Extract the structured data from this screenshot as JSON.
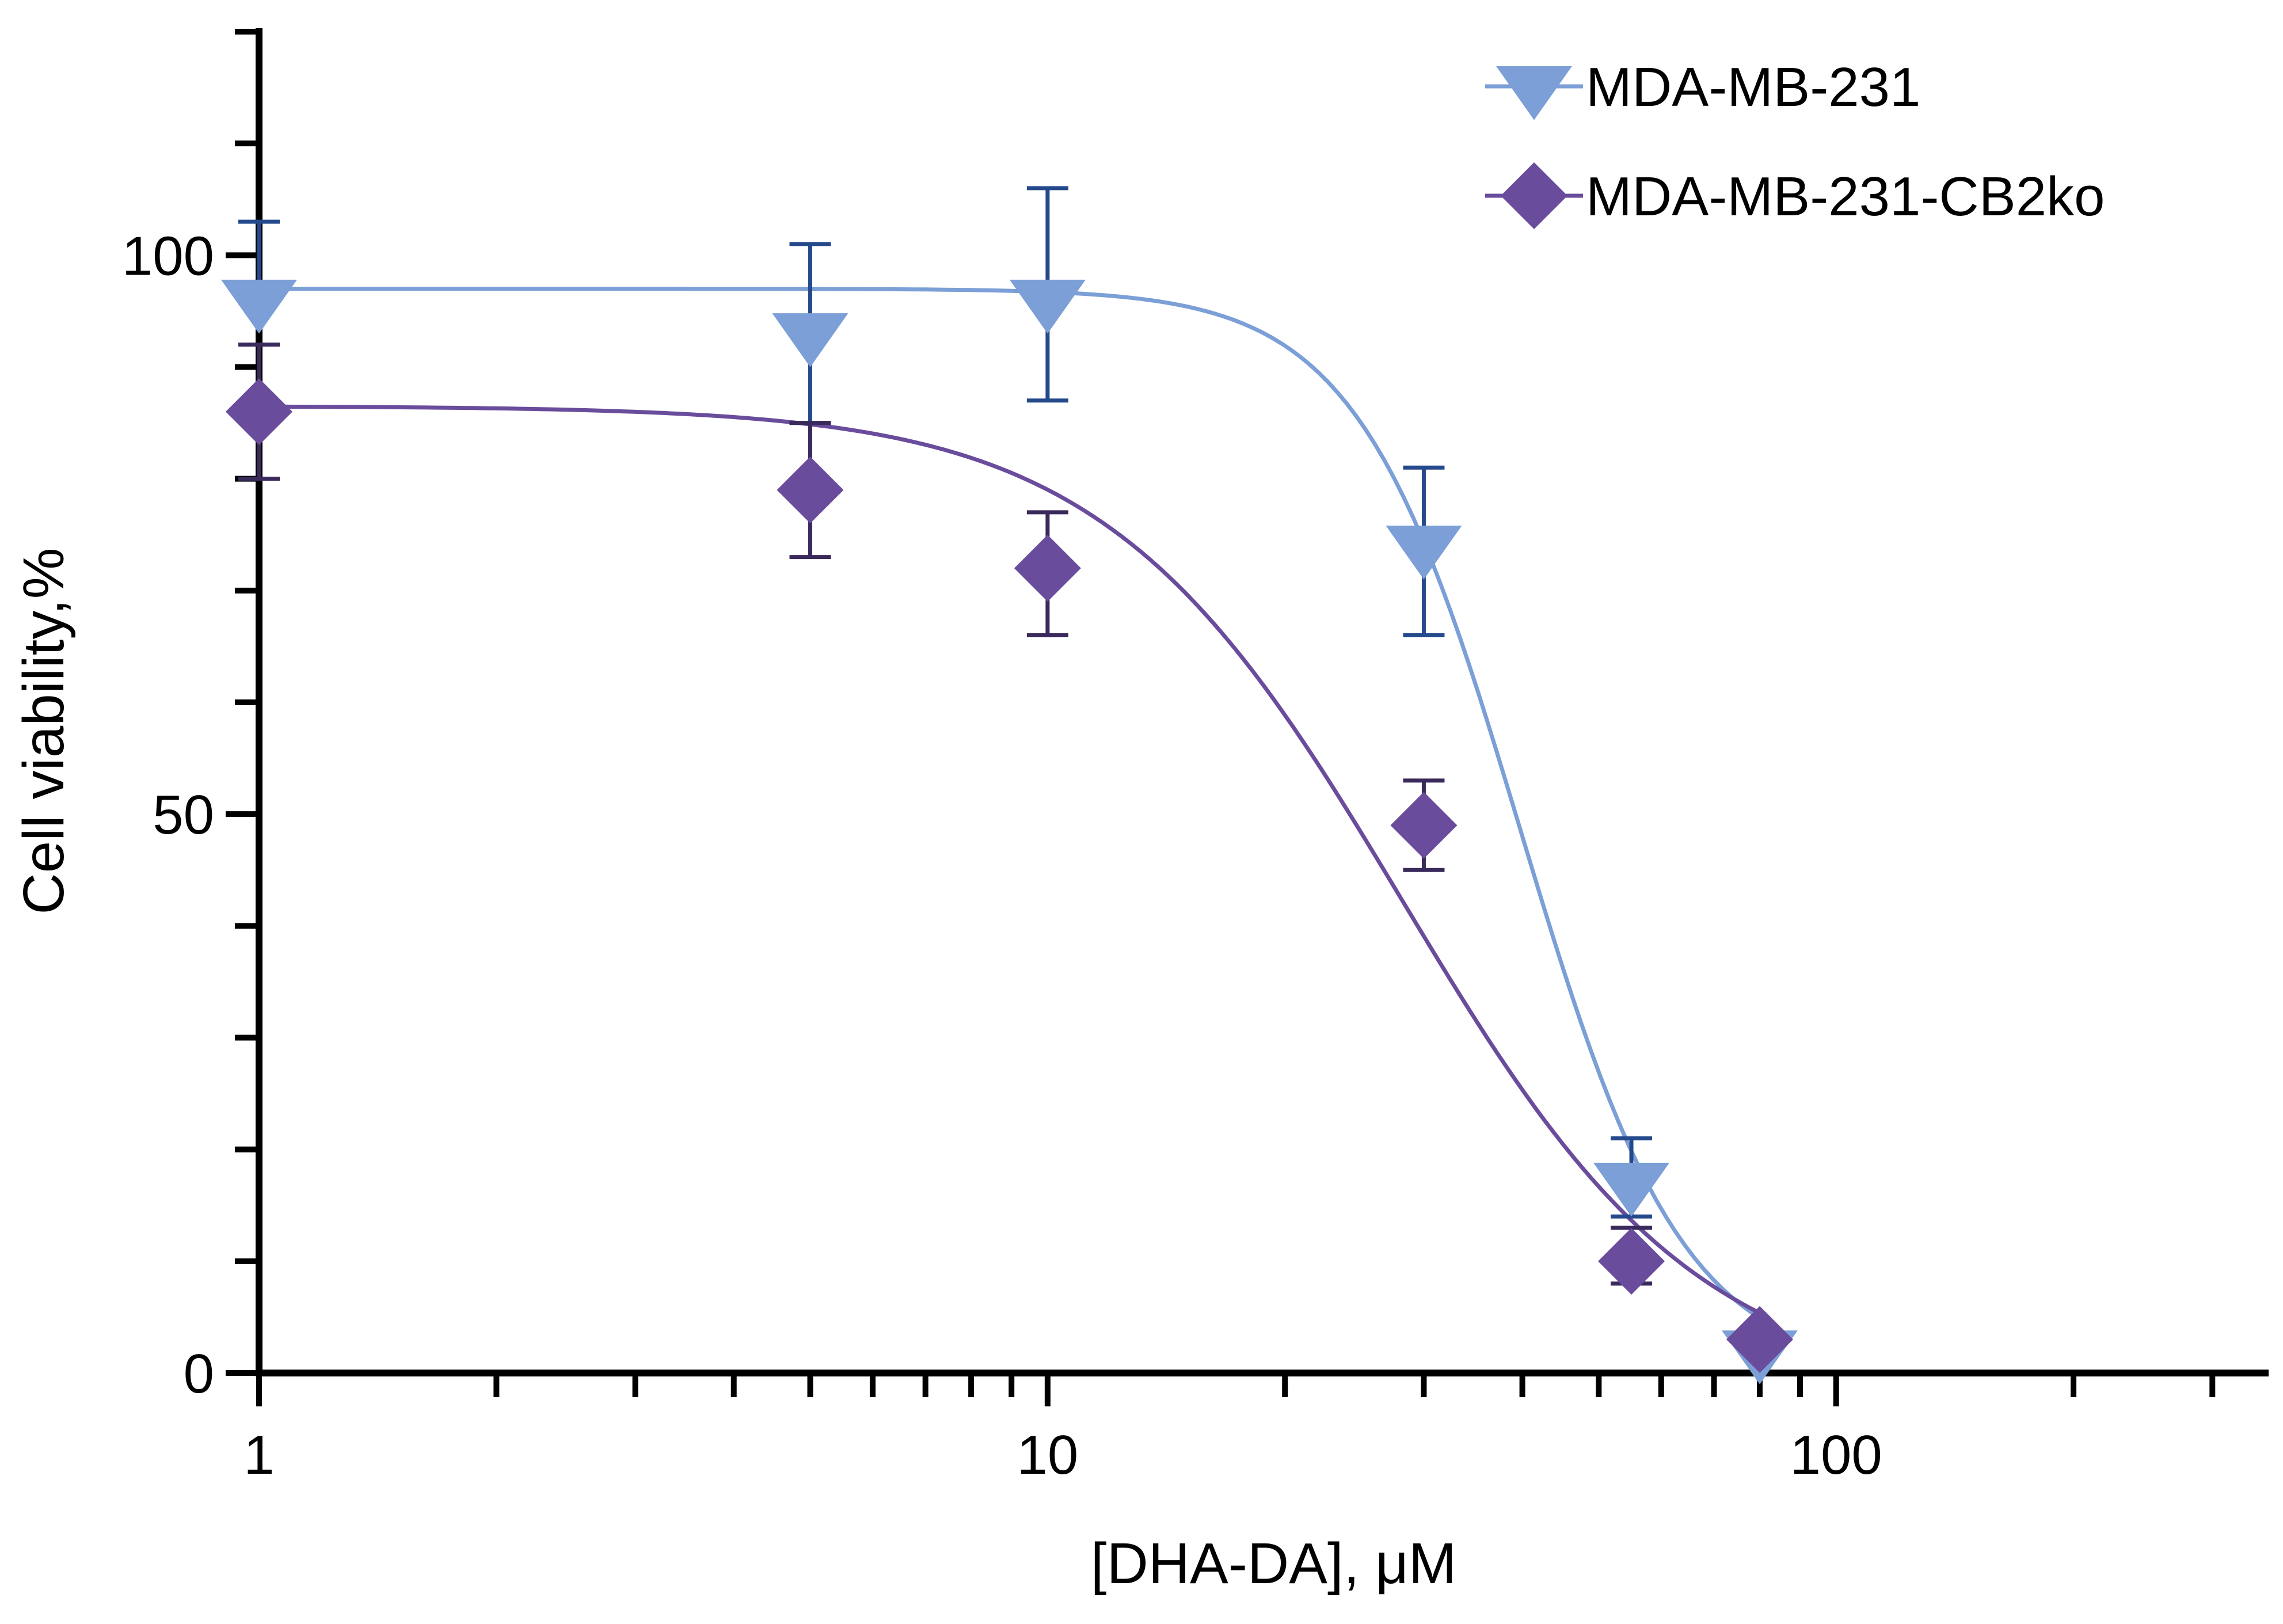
{
  "chart_data": {
    "type": "scatter",
    "title": "",
    "xlabel": "[DHA-DA], μM",
    "ylabel": "Cell viability,%",
    "xscale": "log",
    "xlim": [
      1,
      350
    ],
    "ylim": [
      0,
      120
    ],
    "grid": false,
    "legend_position": "top-right",
    "x_major_ticks": [
      1,
      10,
      100
    ],
    "x_tick_labels": [
      "1",
      "10",
      "100"
    ],
    "y_major_ticks": [
      0,
      50,
      100
    ],
    "y_tick_labels": [
      "0",
      "50",
      "100"
    ],
    "y_minor_step": 10,
    "series": [
      {
        "name": "MDA-MB-231",
        "marker": "triangle-down",
        "color": "#7b9fd6",
        "error_color": "#254a8c",
        "points": [
          {
            "x": 1,
            "y": 96,
            "err_low": 96,
            "err_high": 103
          },
          {
            "x": 5,
            "y": 93,
            "err_low": 85,
            "err_high": 101
          },
          {
            "x": 10,
            "y": 96,
            "err_low": 87,
            "err_high": 106
          },
          {
            "x": 30,
            "y": 74,
            "err_low": 66,
            "err_high": 81
          },
          {
            "x": 55,
            "y": 17,
            "err_low": 14,
            "err_high": 21
          },
          {
            "x": 80,
            "y": 2,
            "err_low": 2,
            "err_high": 2
          }
        ],
        "fit": {
          "top": 97,
          "bottom": 0,
          "log_ec50": 1.6,
          "hill": 4.2,
          "x_start": 1,
          "x_end": 80
        }
      },
      {
        "name": "MDA-MB-231-CB2ko",
        "marker": "diamond",
        "color": "#6a4c9c",
        "error_color": "#3a2a5c",
        "points": [
          {
            "x": 1,
            "y": 86,
            "err_low": 80,
            "err_high": 92
          },
          {
            "x": 5,
            "y": 79,
            "err_low": 73,
            "err_high": 85
          },
          {
            "x": 10,
            "y": 72,
            "err_low": 66,
            "err_high": 77
          },
          {
            "x": 30,
            "y": 49,
            "err_low": 45,
            "err_high": 53
          },
          {
            "x": 55,
            "y": 10,
            "err_low": 8,
            "err_high": 13
          },
          {
            "x": 80,
            "y": 3,
            "err_low": 3,
            "err_high": 3
          }
        ],
        "fit": {
          "top": 86.5,
          "bottom": -2,
          "log_ec50": 1.45,
          "hill": 2.3,
          "x_start": 1,
          "x_end": 80
        }
      }
    ]
  }
}
